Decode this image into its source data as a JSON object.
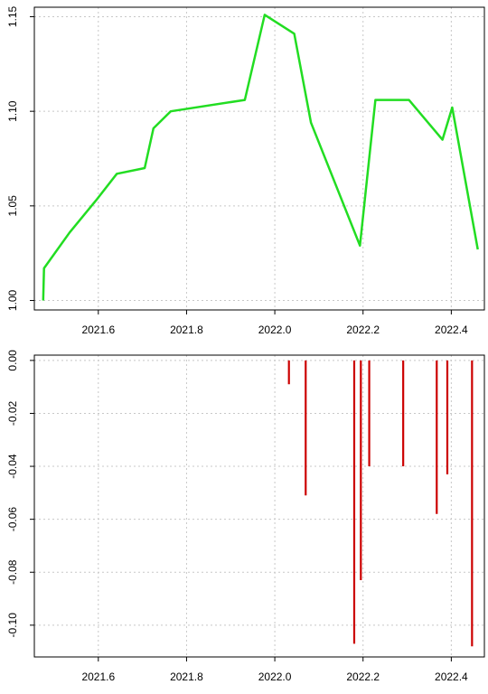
{
  "chart_data": [
    {
      "type": "line",
      "title": "",
      "xlabel": "",
      "ylabel": "",
      "xlim": [
        2021.455,
        2022.475
      ],
      "ylim": [
        0.995,
        1.155
      ],
      "grid": true,
      "x_ticks": [
        2021.6,
        2021.8,
        2022.0,
        2022.2,
        2022.4
      ],
      "x_tick_labels": [
        "2021.6",
        "2021.8",
        "2022.0",
        "2022.2",
        "2022.4"
      ],
      "y_ticks": [
        1.0,
        1.05,
        1.1,
        1.15
      ],
      "y_tick_labels": [
        "1.00",
        "1.05",
        "1.10",
        "1.15"
      ],
      "line_color": "#22dd22",
      "series": [
        {
          "x": [
            2021.475,
            2021.477,
            2021.535,
            2021.595,
            2021.642,
            2021.705,
            2021.725,
            2021.764,
            2021.932,
            2021.977,
            2022.044,
            2022.082,
            2022.193,
            2022.228,
            2022.304,
            2022.38,
            2022.402,
            2022.46
          ],
          "y": [
            1.0,
            1.017,
            1.036,
            1.053,
            1.067,
            1.07,
            1.091,
            1.1,
            1.106,
            1.151,
            1.141,
            1.094,
            1.029,
            1.106,
            1.106,
            1.085,
            1.102,
            1.027
          ]
        }
      ]
    },
    {
      "type": "bar",
      "title": "",
      "xlabel": "",
      "ylabel": "",
      "xlim": [
        2021.455,
        2022.475
      ],
      "ylim": [
        -0.112,
        0.002
      ],
      "grid": true,
      "x_ticks": [
        2021.6,
        2021.8,
        2022.0,
        2022.2,
        2022.4
      ],
      "x_tick_labels": [
        "2021.6",
        "2021.8",
        "2022.0",
        "2022.2",
        "2022.4"
      ],
      "y_ticks": [
        0.0,
        -0.02,
        -0.04,
        -0.06,
        -0.08,
        -0.1
      ],
      "y_tick_labels": [
        "0.00",
        "-0.02",
        "-0.04",
        "-0.06",
        "-0.08",
        "-0.10"
      ],
      "bar_color": "#cc0000",
      "series": [
        {
          "x": [
            2022.032,
            2022.07,
            2022.18,
            2022.195,
            2022.214,
            2022.291,
            2022.367,
            2022.391,
            2022.447
          ],
          "y": [
            -0.009,
            -0.051,
            -0.107,
            -0.083,
            -0.04,
            -0.04,
            -0.058,
            -0.043,
            -0.108
          ]
        }
      ]
    }
  ]
}
